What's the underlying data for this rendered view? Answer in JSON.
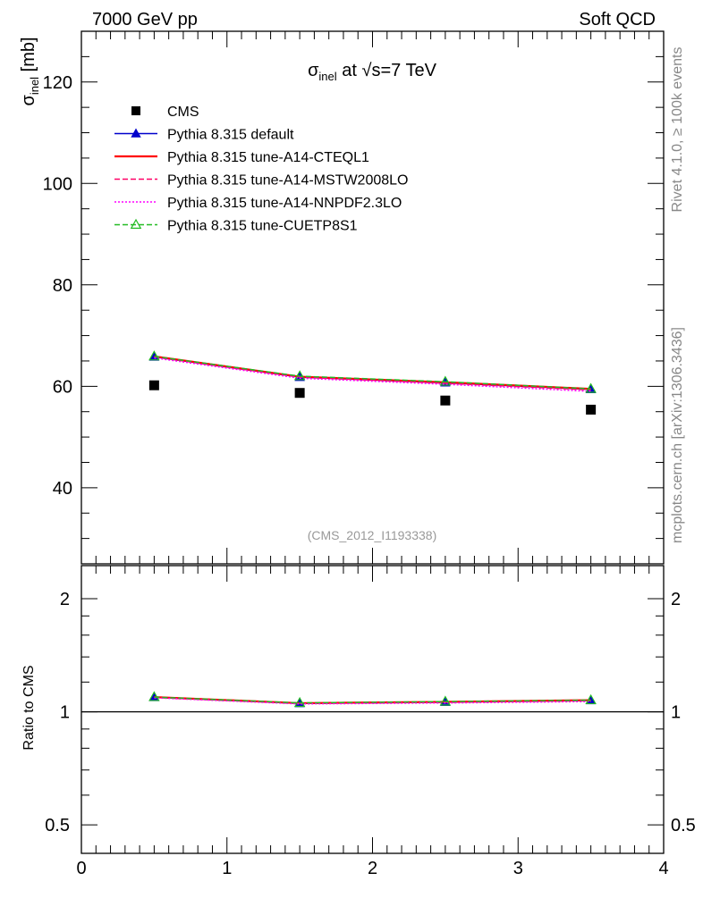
{
  "header": {
    "left": "7000 GeV pp",
    "right": "Soft QCD"
  },
  "side_labels": {
    "rivet": "Rivet 4.1.0, ≥ 100k events",
    "mcplots": "mcplots.cern.ch [arXiv:1306.3436]"
  },
  "chart_data": {
    "type": "scatter",
    "title_parts": {
      "sigma": "σ",
      "sub": "inel",
      "at": " at ",
      "sqrt": "√",
      "s_eq": "s=7 TeV"
    },
    "ylabel_parts": {
      "sigma": "σ",
      "sub": "inel",
      "unit": " [mb]"
    },
    "analysis_tag": "(CMS_2012_I1193338)",
    "xlim": [
      0,
      4
    ],
    "ylim": [
      25,
      130
    ],
    "x_ticks": [
      0,
      1,
      2,
      3,
      4
    ],
    "x_tick_labels": [
      "0",
      "1",
      "2",
      "3",
      "4"
    ],
    "y_ticks": [
      40,
      60,
      80,
      100,
      120
    ],
    "y_tick_labels": [
      "40",
      "60",
      "80",
      "100",
      "120"
    ],
    "x": [
      0.5,
      1.5,
      2.5,
      3.5
    ],
    "data": {
      "name": "CMS",
      "values": [
        60.2,
        58.7,
        57.2,
        55.4
      ]
    },
    "series": [
      {
        "name": "Pythia 8.315 default",
        "color": "#0000cc",
        "style": "solid",
        "marker": "triangle-filled",
        "values": [
          65.8,
          61.8,
          60.7,
          59.4
        ]
      },
      {
        "name": "Pythia 8.315 tune-A14-CTEQL1",
        "color": "#ff0000",
        "style": "solid-thick",
        "marker": "none",
        "values": [
          65.9,
          61.9,
          60.8,
          59.5
        ]
      },
      {
        "name": "Pythia 8.315 tune-A14-MSTW2008LO",
        "color": "#ff0066",
        "style": "dashed",
        "marker": "none",
        "values": [
          65.8,
          61.8,
          60.6,
          59.3
        ]
      },
      {
        "name": "Pythia 8.315 tune-A14-NNPDF2.3LO",
        "color": "#ff00ff",
        "style": "dotted",
        "marker": "none",
        "values": [
          65.6,
          61.6,
          60.4,
          59.0
        ]
      },
      {
        "name": "Pythia 8.315 tune-CUETP8S1",
        "color": "#22bb22",
        "style": "dashed",
        "marker": "triangle-open",
        "values": [
          65.9,
          62.0,
          60.9,
          59.5
        ]
      }
    ],
    "ratio": {
      "ylabel": "Ratio to CMS",
      "ylim": [
        0.42,
        2.45
      ],
      "scale": "log",
      "y_ticks": [
        0.5,
        1,
        2
      ],
      "y_tick_labels": [
        "0.5",
        "1",
        "2"
      ],
      "y_minor": [
        0.6,
        0.7,
        0.8,
        0.9,
        1.2,
        1.4,
        1.6,
        1.8
      ]
    }
  }
}
